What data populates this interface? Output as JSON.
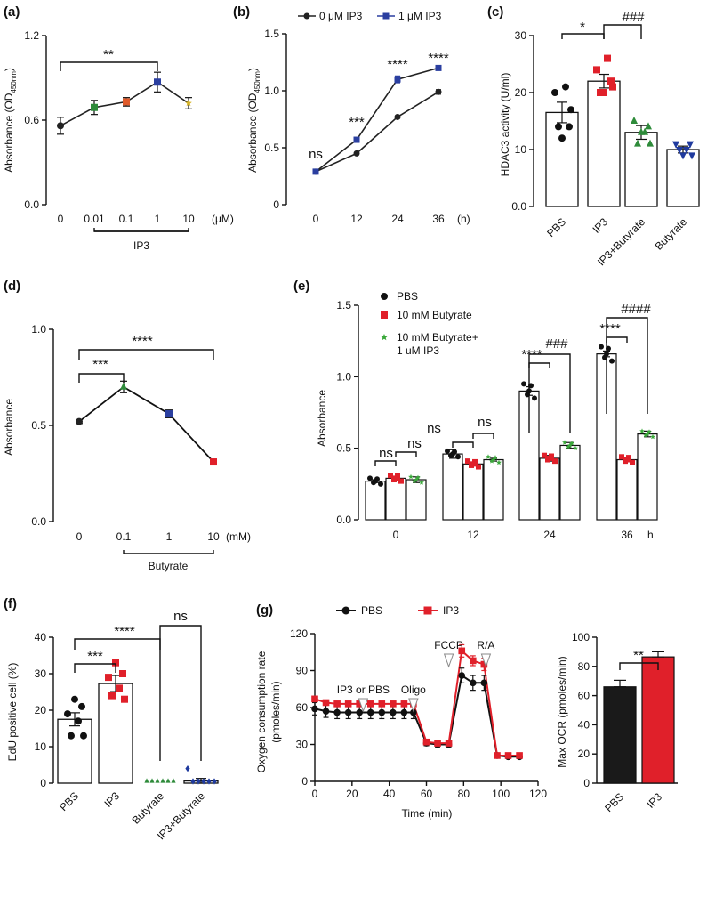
{
  "chart_data": [
    {
      "panel": "(a)",
      "type": "line",
      "ylabel": "Absorbance (OD",
      "ylabel_sub": "450nm",
      "ylabel_end": ")",
      "categories": [
        "0",
        "0.01",
        "0.1",
        "1",
        "10"
      ],
      "unit": "(μM)",
      "group_label": "IP3",
      "values": [
        0.56,
        0.69,
        0.73,
        0.87,
        0.72
      ],
      "errors": [
        0.06,
        0.05,
        0.03,
        0.07,
        0.04
      ],
      "point_colors": [
        "#222222",
        "#2e8b3a",
        "#e05a2a",
        "#2b3fa0",
        "#d7b52a"
      ],
      "yticks": [
        "0.0",
        "0.6",
        "1.2"
      ],
      "ylim": [
        0,
        1.2
      ],
      "sig": "**"
    },
    {
      "panel": "(b)",
      "type": "line",
      "ylabel": "Absorbance (OD",
      "ylabel_sub": "450nm",
      "ylabel_end": ")",
      "x": [
        "0",
        "12",
        "24",
        "36"
      ],
      "xunit": "(h)",
      "series": [
        {
          "name": "0 μM IP3",
          "values": [
            0.29,
            0.45,
            0.77,
            0.99
          ],
          "errors": [
            0.01,
            0.01,
            0.01,
            0.02
          ],
          "color": "#222222"
        },
        {
          "name": "1 μM IP3",
          "values": [
            0.29,
            0.57,
            1.1,
            1.2
          ],
          "errors": [
            0.01,
            0.01,
            0.03,
            0.01
          ],
          "color": "#2b3fa0"
        }
      ],
      "yticks": [
        "0",
        "0.5",
        "1.0",
        "1.5"
      ],
      "ylim": [
        0,
        1.5
      ],
      "sig": [
        "ns",
        "***",
        "****",
        "****"
      ]
    },
    {
      "panel": "(c)",
      "type": "bar",
      "ylabel": "HDAC3 activity (U/ml)",
      "categories": [
        "PBS",
        "IP3",
        "IP3+Butyrate",
        "Butyrate"
      ],
      "values": [
        16.5,
        22.0,
        13.0,
        10.0
      ],
      "errors": [
        1.8,
        1.2,
        1.2,
        0.6
      ],
      "points": [
        [
          20,
          21,
          17,
          14,
          12,
          14
        ],
        [
          24,
          26,
          21,
          20,
          20,
          22
        ],
        [
          15,
          13,
          11,
          11,
          13,
          14
        ],
        [
          11,
          10,
          9,
          10,
          9,
          11
        ]
      ],
      "point_colors": [
        "#111111",
        "#e0202a",
        "#2e8b3a",
        "#1f3a9e"
      ],
      "point_shapes": [
        "circle",
        "square",
        "triangle-up",
        "triangle-down"
      ],
      "yticks": [
        "0.0",
        "10",
        "20",
        "30"
      ],
      "ylim": [
        0,
        30
      ],
      "sig": [
        "*",
        "###"
      ]
    },
    {
      "panel": "(d)",
      "type": "line",
      "ylabel": "Absorbance",
      "categories": [
        "0",
        "0.1",
        "1",
        "10"
      ],
      "unit": "(mM)",
      "group_label": "Butyrate",
      "values": [
        0.52,
        0.7,
        0.56,
        0.31
      ],
      "errors": [
        0.01,
        0.03,
        0.02,
        0.01
      ],
      "point_colors": [
        "#222222",
        "#2e8b3a",
        "#2b3fa0",
        "#e0202a"
      ],
      "yticks": [
        "0.0",
        "0.5",
        "1.0"
      ],
      "ylim": [
        0,
        1.0
      ],
      "sig": [
        "***",
        "****"
      ]
    },
    {
      "panel": "(e)",
      "type": "bar",
      "ylabel": "Absorbance",
      "categories": [
        "0",
        "12",
        "24",
        "36"
      ],
      "xunit": "h",
      "series": [
        {
          "name": "PBS",
          "values": [
            0.27,
            0.46,
            0.9,
            1.16
          ],
          "errors": [
            0.01,
            0.03,
            0.03,
            0.02
          ],
          "color": "#111111"
        },
        {
          "name": "10 mM Butyrate",
          "values": [
            0.29,
            0.39,
            0.43,
            0.42
          ],
          "errors": [
            0.01,
            0.01,
            0.02,
            0.01
          ],
          "color": "#e0202a"
        },
        {
          "name": "10 mM Butyrate+",
          "name2": "1 uM IP3",
          "values": [
            0.28,
            0.42,
            0.52,
            0.6
          ],
          "errors": [
            0.02,
            0.01,
            0.02,
            0.02
          ],
          "color": "#3aa83a"
        }
      ],
      "yticks": [
        "0.0",
        "0.5",
        "1.0",
        "1.5"
      ],
      "ylim": [
        0,
        1.5
      ],
      "sig": [
        "ns",
        "ns",
        "ns",
        "ns",
        "****",
        "###",
        "****",
        "####"
      ]
    },
    {
      "panel": "(f)",
      "type": "bar",
      "ylabel": "EdU positive cell (%)",
      "categories": [
        "PBS",
        "IP3",
        "Butyrate",
        "IP3+Butyrate"
      ],
      "values": [
        17.5,
        27.3,
        0.0,
        0.6
      ],
      "errors": [
        1.8,
        2.2,
        0.0,
        0.7
      ],
      "points": [
        [
          23,
          21,
          19,
          17,
          13,
          13
        ],
        [
          33,
          30,
          29,
          26,
          24,
          23
        ],
        [
          0,
          0,
          0,
          0,
          0,
          0
        ],
        [
          4,
          0,
          0,
          0,
          0,
          0
        ]
      ],
      "point_colors": [
        "#111111",
        "#e0202a",
        "#2e8b3a",
        "#1f3a9e"
      ],
      "point_shapes": [
        "circle",
        "square",
        "triangle-up",
        "diamond"
      ],
      "yticks": [
        "0",
        "10",
        "20",
        "30",
        "40"
      ],
      "ylim": [
        0,
        40
      ],
      "sig": [
        "***",
        "****",
        "ns"
      ]
    },
    {
      "panel": "(g)",
      "type": "line",
      "ylabel": "Oxygen consumption rate",
      "ylabel2": "(pmoles/min)",
      "xlabel": "Time (min)",
      "x": [
        0,
        6,
        12,
        18,
        24,
        30,
        36,
        42,
        48,
        53,
        60,
        66,
        72,
        79,
        85,
        91,
        98,
        104,
        110
      ],
      "series": [
        {
          "name": "PBS",
          "values": [
            59,
            57,
            56,
            56,
            56,
            56,
            56,
            56,
            56,
            56,
            31,
            30,
            30,
            86,
            80,
            80,
            21,
            20,
            20
          ],
          "errors": [
            5,
            5,
            5,
            5,
            5,
            5,
            5,
            5,
            5,
            5,
            2,
            2,
            2,
            6,
            6,
            6,
            1,
            1,
            1
          ],
          "color": "#111111"
        },
        {
          "name": "IP3",
          "values": [
            67,
            64,
            63,
            63,
            63,
            63,
            63,
            63,
            63,
            63,
            32,
            31,
            31,
            106,
            98,
            95,
            21,
            21,
            21
          ],
          "errors": [
            2,
            2,
            2,
            2,
            2,
            2,
            2,
            2,
            2,
            2,
            2,
            2,
            2,
            5,
            4,
            5,
            1,
            1,
            1
          ],
          "color": "#e0202a"
        }
      ],
      "annotations": [
        {
          "text": "IP3 or PBS",
          "x": 26
        },
        {
          "text": "Oligo",
          "x": 53
        },
        {
          "text": "FCCP",
          "x": 72
        },
        {
          "text": "R/A",
          "x": 92
        }
      ],
      "xticks": [
        "0",
        "20",
        "40",
        "60",
        "80",
        "100",
        "120"
      ],
      "xlim": [
        0,
        120
      ],
      "yticks": [
        "0",
        "30",
        "60",
        "90",
        "120"
      ],
      "ylim": [
        0,
        120
      ]
    },
    {
      "panel": "(g) inset",
      "type": "bar",
      "ylabel": "Max OCR (pmoles/min)",
      "categories": [
        "PBS",
        "IP3"
      ],
      "values": [
        66,
        86.5
      ],
      "errors": [
        4.5,
        3.5
      ],
      "colors": [
        "#1a1a1a",
        "#e0202a"
      ],
      "yticks": [
        "0",
        "20",
        "40",
        "60",
        "80",
        "100"
      ],
      "ylim": [
        0,
        100
      ],
      "sig": "**"
    }
  ]
}
